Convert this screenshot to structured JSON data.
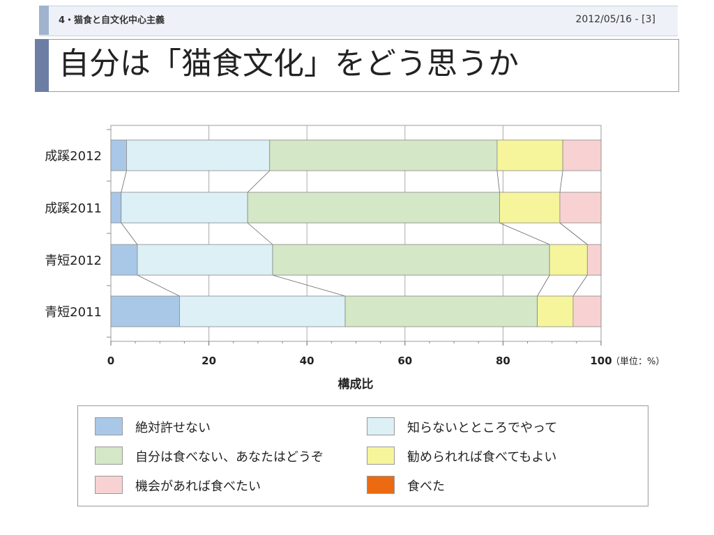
{
  "header": {
    "section_label": "4・猫食と自文化中心主義",
    "slide_meta": "2012/05/16 - [3]",
    "title": "自分は「猫食文化」をどう思うか"
  },
  "chart_data": {
    "type": "bar",
    "orientation": "horizontal",
    "stacked": true,
    "categories": [
      "成蹊2012",
      "成蹊2011",
      "青短2012",
      "青短2011"
    ],
    "xlabel": "構成比",
    "xunit": "（単位：%）",
    "xlim": [
      0,
      100
    ],
    "xticks": [
      "0",
      "20",
      "40",
      "60",
      "80",
      "100"
    ],
    "grid": true,
    "legend_position": "bottom",
    "series": [
      {
        "name": "絶対許せない",
        "color": "#a9c8e8",
        "values": [
          3.2,
          2.1,
          5.4,
          14.0
        ]
      },
      {
        "name": "知らないとところでやって",
        "color": "#dcf0f5",
        "values": [
          29.2,
          25.8,
          27.6,
          33.8
        ]
      },
      {
        "name": "自分は食べない、あなたはどうぞ",
        "color": "#d4e7c6",
        "values": [
          46.4,
          51.4,
          56.5,
          39.2
        ]
      },
      {
        "name": "勧められれば食べてもよい",
        "color": "#f6f59b",
        "values": [
          13.4,
          12.3,
          7.7,
          7.3
        ]
      },
      {
        "name": "機会があれば食べたい",
        "color": "#f8d2d2",
        "values": [
          7.8,
          8.4,
          2.8,
          5.7
        ]
      },
      {
        "name": "食べた",
        "color": "#ec6a12",
        "values": [
          0,
          0,
          0,
          0
        ]
      }
    ]
  },
  "legend": {
    "items": [
      {
        "label": "絶対許せない",
        "color": "#a9c8e8"
      },
      {
        "label": "知らないとところでやって",
        "color": "#dcf0f5"
      },
      {
        "label": "自分は食べない、あなたはどうぞ",
        "color": "#d4e7c6"
      },
      {
        "label": "勧められれば食べてもよい",
        "color": "#f6f59b"
      },
      {
        "label": "機会があれば食べたい",
        "color": "#f8d2d2"
      },
      {
        "label": "食べた",
        "color": "#ec6a12"
      }
    ]
  }
}
